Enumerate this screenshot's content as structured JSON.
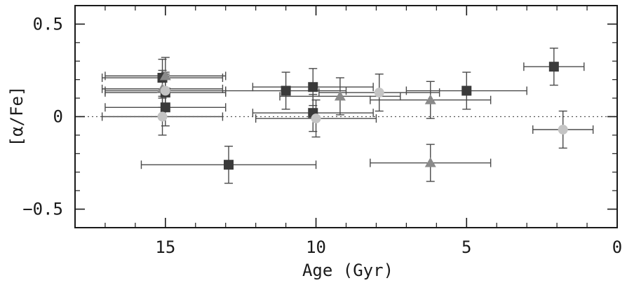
{
  "chart_data": {
    "type": "scatter",
    "xlabel": "Age (Gyr)",
    "ylabel": "[α/Fe]",
    "xlim": [
      18,
      0
    ],
    "ylim": [
      -0.6,
      0.6
    ],
    "x_ticks": [
      15,
      10,
      5,
      0
    ],
    "x_tick_labels": [
      "15",
      "10",
      "5",
      "0"
    ],
    "y_ticks": [
      0.5,
      0,
      -0.5
    ],
    "y_tick_labels": [
      "0.5",
      "0",
      "−0.5"
    ],
    "reference_line": {
      "y": 0,
      "style": "dotted"
    },
    "grid": false,
    "legend": "none",
    "colors": {
      "square": "#3a3a3a",
      "triangle": "#8a8a8a",
      "light": "#c4c4c4",
      "errorbar": "#4a4a4a",
      "axis": "#1a1a1a"
    },
    "series": [
      {
        "marker": "square",
        "points": [
          {
            "x": 15.1,
            "y": 0.21,
            "xerr": 2.0,
            "yerr": 0.1
          },
          {
            "x": 15.0,
            "y": 0.13,
            "xerr": 2.0,
            "yerr": 0.1
          },
          {
            "x": 15.0,
            "y": 0.05,
            "xerr": 2.0,
            "yerr": 0.1
          },
          {
            "x": 12.9,
            "y": -0.26,
            "xerr": 2.9,
            "yerr": 0.1
          },
          {
            "x": 11.0,
            "y": 0.14,
            "xerr": 2.0,
            "yerr": 0.1
          },
          {
            "x": 10.1,
            "y": 0.16,
            "xerr": 2.0,
            "yerr": 0.1
          },
          {
            "x": 10.1,
            "y": 0.02,
            "xerr": 2.0,
            "yerr": 0.1
          },
          {
            "x": 5.0,
            "y": 0.14,
            "xerr": 2.0,
            "yerr": 0.1
          },
          {
            "x": 2.1,
            "y": 0.27,
            "xerr": 1.0,
            "yerr": 0.1
          }
        ]
      },
      {
        "marker": "triangle",
        "points": [
          {
            "x": 15.0,
            "y": 0.22,
            "xerr": 2.0,
            "yerr": 0.1
          },
          {
            "x": 15.1,
            "y": 0.15,
            "xerr": 2.0,
            "yerr": 0.1
          },
          {
            "x": 9.2,
            "y": 0.11,
            "xerr": 2.0,
            "yerr": 0.1
          },
          {
            "x": 6.2,
            "y": 0.09,
            "xerr": 2.0,
            "yerr": 0.1
          },
          {
            "x": 6.2,
            "y": -0.25,
            "xerr": 2.0,
            "yerr": 0.1
          }
        ]
      },
      {
        "marker": "circle-light",
        "points": [
          {
            "x": 15.0,
            "y": 0.14,
            "xerr": 2.0,
            "yerr": 0.1
          },
          {
            "x": 15.1,
            "y": 0.0,
            "xerr": 2.0,
            "yerr": 0.1
          },
          {
            "x": 10.0,
            "y": -0.01,
            "xerr": 2.0,
            "yerr": 0.1
          },
          {
            "x": 7.9,
            "y": 0.13,
            "xerr": 2.0,
            "yerr": 0.1
          },
          {
            "x": 1.8,
            "y": -0.07,
            "xerr": 1.0,
            "yerr": 0.1
          }
        ]
      }
    ]
  }
}
